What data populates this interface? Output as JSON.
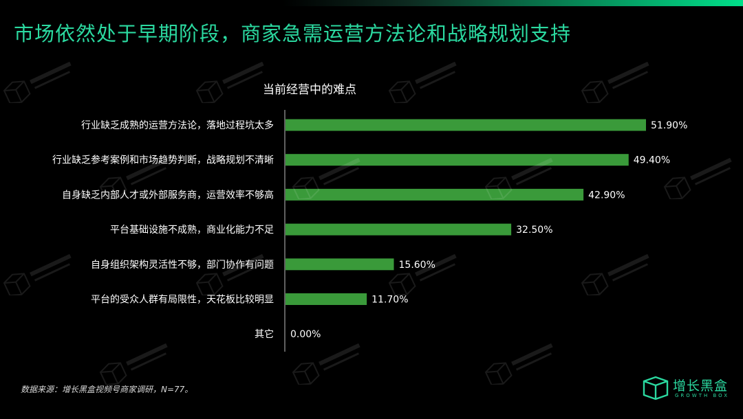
{
  "page": {
    "title": "市场依然处于早期阶段，商家急需运营方法论和战略规划支持",
    "source_note": "数据来源：增长黑盒视频号商家调研，N=77。",
    "logo_cn": "增长黑盒",
    "logo_en": "GROWTH BOX",
    "accent_color": "#2bd9a0"
  },
  "chart_data": {
    "type": "bar",
    "orientation": "horizontal",
    "title": "当前经营中的难点",
    "xlabel": "",
    "ylabel": "",
    "xlim": [
      0,
      60
    ],
    "grid": false,
    "bar_color": "#3a9a3a",
    "categories": [
      "行业缺乏成熟的运营方法论，落地过程坑太多",
      "行业缺乏参考案例和市场趋势判断，战略规划不清晰",
      "自身缺乏内部人才或外部服务商，运营效率不够高",
      "平台基础设施不成熟，商业化能力不足",
      "自身组织架构灵活性不够，部门协作有问题",
      "平台的受众人群有局限性，天花板比较明显",
      "其它"
    ],
    "values": [
      51.9,
      49.4,
      42.9,
      32.5,
      15.6,
      11.7,
      0.0
    ],
    "value_labels": [
      "51.90%",
      "49.40%",
      "42.90%",
      "32.50%",
      "15.60%",
      "11.70%",
      "0.00%"
    ]
  }
}
